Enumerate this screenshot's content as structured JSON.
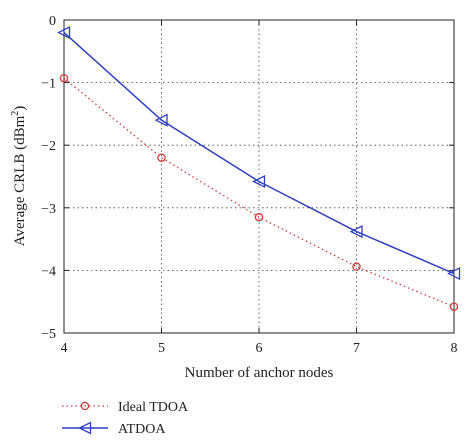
{
  "chart_data": {
    "type": "line",
    "title": "",
    "xlabel": "Number of anchor nodes",
    "ylabel_main": "Average CRLB (dBm",
    "ylabel_sup": "2",
    "ylabel_close": ")",
    "x": [
      4,
      5,
      6,
      7,
      8
    ],
    "xlim": [
      4,
      8
    ],
    "ylim": [
      -5,
      0
    ],
    "xticks": [
      "4",
      "5",
      "6",
      "7",
      "8"
    ],
    "yticks": [
      "0",
      "−1",
      "−2",
      "−3",
      "−4",
      "−5"
    ],
    "grid": true,
    "legend_position": "below-left",
    "series": [
      {
        "name": "Ideal TDOA",
        "values": [
          -0.93,
          -2.2,
          -3.15,
          -3.94,
          -4.58
        ],
        "color": "#d23a3a",
        "line_style": "dotted",
        "marker": "circle"
      },
      {
        "name": "ATDOA",
        "values": [
          -0.2,
          -1.6,
          -2.58,
          -3.38,
          -4.05
        ],
        "color": "#2f3fbf",
        "line_style": "solid",
        "marker": "triangle-left"
      }
    ]
  }
}
